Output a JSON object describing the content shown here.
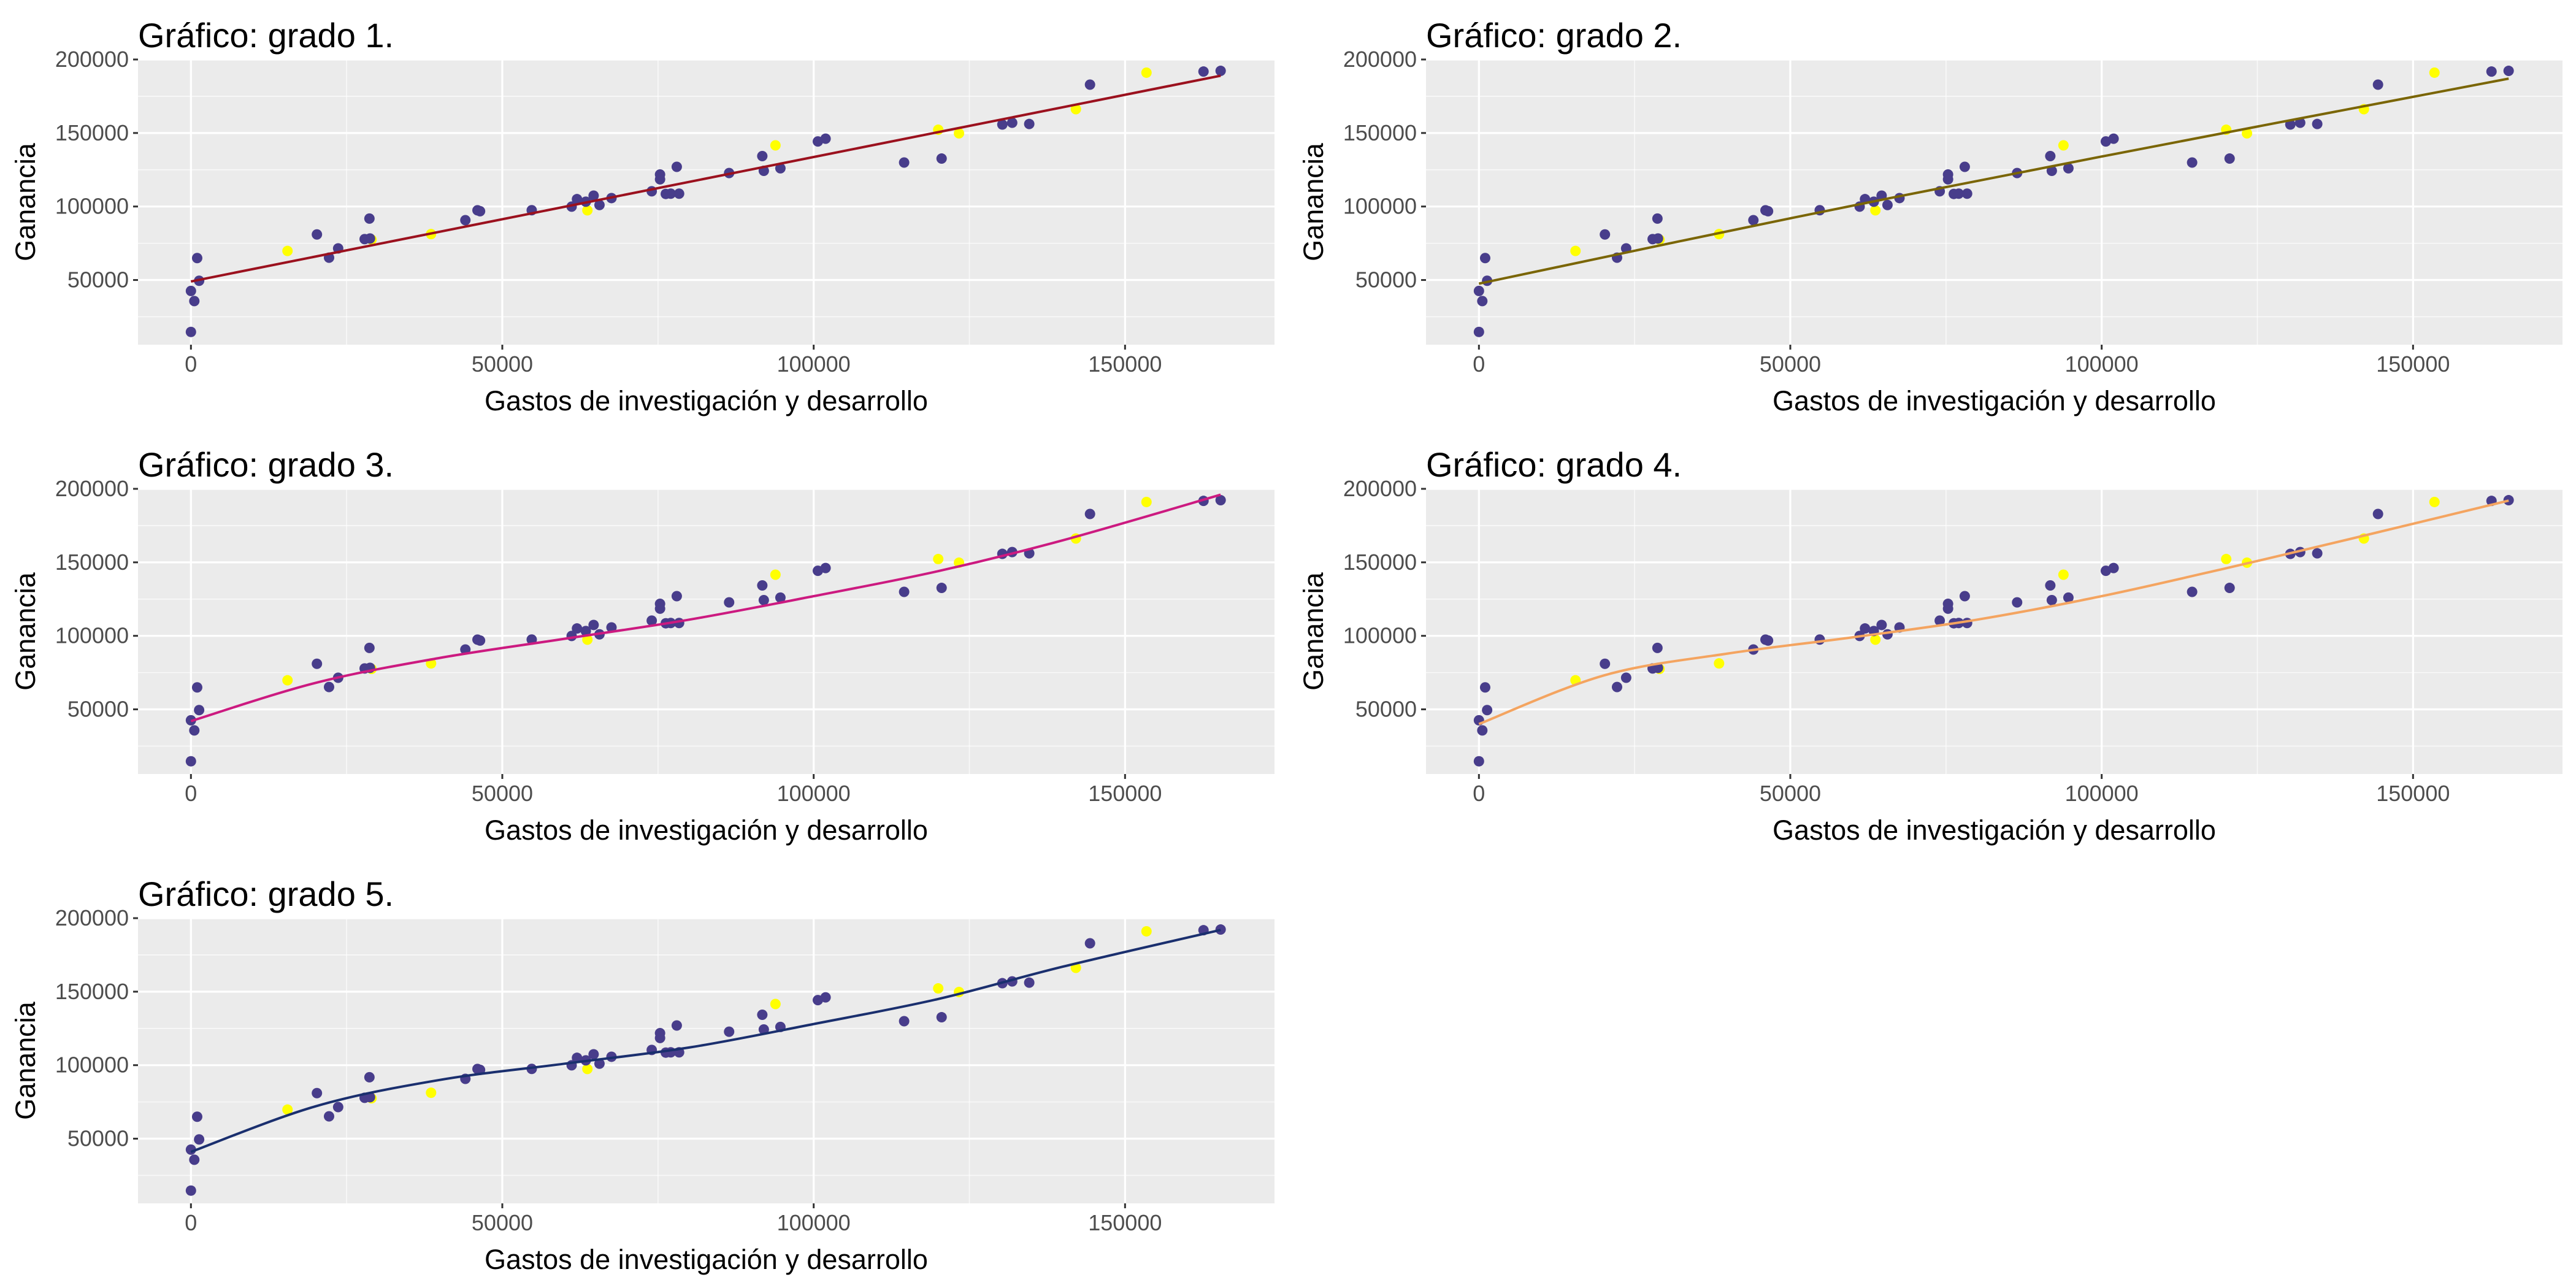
{
  "figure": {
    "colors": {
      "panel_bg": "#ebebeb",
      "grid_major": "#ffffff",
      "point_train": "#483d8b",
      "point_test": "#ffff00"
    },
    "train_points": [
      [
        165349,
        192262
      ],
      [
        162598,
        191792
      ],
      [
        144372,
        182902
      ],
      [
        131877,
        156991
      ],
      [
        134615,
        156123
      ],
      [
        130298,
        155753
      ],
      [
        120543,
        132602
      ],
      [
        101914,
        146122
      ],
      [
        114524,
        129917
      ],
      [
        78014,
        126993
      ],
      [
        75329,
        121776
      ],
      [
        73995,
        110352
      ],
      [
        86420,
        122777
      ],
      [
        78390,
        108734
      ],
      [
        76254,
        108552
      ],
      [
        77045,
        108734
      ],
      [
        61994,
        105008
      ],
      [
        63409,
        103282
      ],
      [
        65606,
        101004
      ],
      [
        61136,
        99938
      ],
      [
        54725,
        97484
      ],
      [
        46015,
        97427
      ],
      [
        46427,
        96779
      ],
      [
        44070,
        90709
      ],
      [
        67533,
        105734
      ],
      [
        28664,
        91792
      ],
      [
        20230,
        81005
      ],
      [
        22178,
        65201
      ],
      [
        28754,
        78240
      ],
      [
        27893,
        77799
      ],
      [
        0,
        42560
      ],
      [
        542,
        35674
      ],
      [
        1001,
        64927
      ],
      [
        1315,
        49491
      ],
      [
        0,
        14681
      ],
      [
        64665,
        107404
      ],
      [
        75330,
        118474
      ],
      [
        91992,
        124267
      ],
      [
        91749,
        134307
      ],
      [
        94658,
        126000
      ],
      [
        100672,
        144259
      ],
      [
        23641,
        71498
      ]
    ],
    "test_points": [
      [
        153441,
        191050
      ],
      [
        142107,
        166188
      ],
      [
        123335,
        149760
      ],
      [
        120000,
        152212
      ],
      [
        93864,
        141586
      ],
      [
        63664,
        97400
      ],
      [
        38558,
        81229
      ],
      [
        15506,
        69759
      ],
      [
        29000,
        77500
      ]
    ],
    "panels": [
      {
        "title": "Gráfico: grado 1.",
        "xlabel": "Gastos de investigación y desarrollo",
        "ylabel": "Ganancia",
        "xlim": [
          -8500,
          174000
        ],
        "ylim": [
          6000,
          200000
        ],
        "xticks": [
          "0",
          "50000",
          "100000",
          "150000"
        ],
        "yticks": [
          "50000",
          "100000",
          "150000",
          "200000"
        ],
        "line_color": "#9b111e",
        "fit": [
          [
            0,
            49000
          ],
          [
            165349,
            189000
          ]
        ]
      },
      {
        "title": "Gráfico: grado 2.",
        "xlabel": "Gastos de investigación y desarrollo",
        "ylabel": "Ganancia",
        "xlim": [
          -8500,
          174000
        ],
        "ylim": [
          6000,
          200000
        ],
        "xticks": [
          "0",
          "50000",
          "100000",
          "150000"
        ],
        "yticks": [
          "50000",
          "100000",
          "150000",
          "200000"
        ],
        "line_color": "#7a6504",
        "fit": [
          [
            0,
            47500
          ],
          [
            50000,
            92000
          ],
          [
            100000,
            134000
          ],
          [
            165349,
            187000
          ]
        ]
      },
      {
        "title": "Gráfico: grado 3.",
        "xlabel": "Gastos de investigación y desarrollo",
        "ylabel": "Ganancia",
        "xlim": [
          -8500,
          174000
        ],
        "ylim": [
          6000,
          200000
        ],
        "xticks": [
          "0",
          "50000",
          "100000",
          "150000"
        ],
        "yticks": [
          "50000",
          "100000",
          "150000",
          "200000"
        ],
        "line_color": "#cc1a80",
        "fit": [
          [
            0,
            42000
          ],
          [
            20000,
            68000
          ],
          [
            40000,
            85000
          ],
          [
            60000,
            98000
          ],
          [
            80000,
            111000
          ],
          [
            100000,
            127000
          ],
          [
            120000,
            144000
          ],
          [
            140000,
            165000
          ],
          [
            165349,
            196000
          ]
        ]
      },
      {
        "title": "Gráfico: grado 4.",
        "xlabel": "Gastos de investigación y desarrollo",
        "ylabel": "Ganancia",
        "xlim": [
          -8500,
          174000
        ],
        "ylim": [
          6000,
          200000
        ],
        "xticks": [
          "0",
          "50000",
          "100000",
          "150000"
        ],
        "yticks": [
          "50000",
          "100000",
          "150000",
          "200000"
        ],
        "line_color": "#f4a460",
        "fit": [
          [
            0,
            40000
          ],
          [
            20000,
            73000
          ],
          [
            40000,
            88000
          ],
          [
            60000,
            99000
          ],
          [
            80000,
            111000
          ],
          [
            100000,
            127000
          ],
          [
            120000,
            146000
          ],
          [
            140000,
            166000
          ],
          [
            165349,
            192000
          ]
        ]
      },
      {
        "title": "Gráfico: grado 5.",
        "xlabel": "Gastos de investigación y desarrollo",
        "ylabel": "Ganancia",
        "xlim": [
          -8500,
          174000
        ],
        "ylim": [
          6000,
          200000
        ],
        "xticks": [
          "0",
          "50000",
          "100000",
          "150000"
        ],
        "yticks": [
          "50000",
          "100000",
          "150000",
          "200000"
        ],
        "line_color": "#1a2f6e",
        "fit": [
          [
            0,
            41000
          ],
          [
            20000,
            72000
          ],
          [
            40000,
            90000
          ],
          [
            60000,
            101000
          ],
          [
            80000,
            112000
          ],
          [
            100000,
            128000
          ],
          [
            120000,
            145000
          ],
          [
            140000,
            167000
          ],
          [
            165349,
            192000
          ]
        ]
      }
    ]
  },
  "chart_data": [
    {
      "type": "scatter",
      "title": "Gráfico: grado 1.",
      "xlabel": "Gastos de investigación y desarrollo",
      "ylabel": "Ganancia",
      "xlim": [
        -8500,
        174000
      ],
      "ylim": [
        6000,
        200000
      ],
      "grid": true,
      "fit_line": "linear"
    },
    {
      "type": "scatter",
      "title": "Gráfico: grado 2.",
      "xlabel": "Gastos de investigación y desarrollo",
      "ylabel": "Ganancia",
      "xlim": [
        -8500,
        174000
      ],
      "ylim": [
        6000,
        200000
      ],
      "grid": true,
      "fit_line": "polynomial"
    },
    {
      "type": "scatter",
      "title": "Gráfico: grado 3.",
      "xlabel": "Gastos de investigación y desarrollo",
      "ylabel": "Ganancia",
      "xlim": [
        -8500,
        174000
      ],
      "ylim": [
        6000,
        200000
      ],
      "grid": true,
      "fit_line": "polynomial"
    },
    {
      "type": "scatter",
      "title": "Gráfico: grado 4.",
      "xlabel": "Gastos de investigación y desarrollo",
      "ylabel": "Ganancia",
      "xlim": [
        -8500,
        174000
      ],
      "ylim": [
        6000,
        200000
      ],
      "grid": true,
      "fit_line": "polynomial"
    },
    {
      "type": "scatter",
      "title": "Gráfico: grado 5.",
      "xlabel": "Gastos de investigación y desarrollo",
      "ylabel": "Ganancia",
      "xlim": [
        -8500,
        174000
      ],
      "ylim": [
        6000,
        200000
      ],
      "grid": true,
      "fit_line": "polynomial"
    }
  ]
}
